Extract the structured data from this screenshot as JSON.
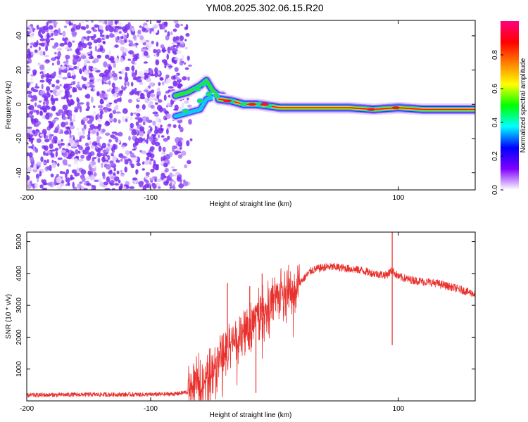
{
  "title": "YM08.2025.302.06.15.R20",
  "colors": {
    "snr_line": "#e8302c",
    "scatter_purple": "#7a2cf0",
    "scatter_light": "#d2b8fb",
    "axis": "#000000"
  },
  "chart_data": [
    {
      "type": "heatmap",
      "name": "spectrogram",
      "title": "",
      "xlabel": "Height of straight line (km)",
      "ylabel": "Frequency (Hz)",
      "xlim": [
        -200,
        162
      ],
      "ylim": [
        -50,
        49
      ],
      "xticks": [
        -200,
        -100,
        100
      ],
      "xtick_labels": [
        "-200",
        "-100",
        "100"
      ],
      "yticks": [
        -40,
        -20,
        0,
        20,
        40
      ],
      "ytick_labels": [
        "-40",
        "-20",
        "0",
        "20",
        "40"
      ],
      "noise_region_x": [
        -200,
        -75
      ],
      "band_upper": [
        [
          -80,
          5
        ],
        [
          -70,
          7
        ],
        [
          -60,
          11
        ],
        [
          -55,
          14
        ],
        [
          -50,
          8
        ],
        [
          -45,
          5
        ],
        [
          -40,
          5
        ],
        [
          -30,
          2
        ],
        [
          -20,
          0
        ],
        [
          -10,
          0
        ],
        [
          0,
          -1
        ],
        [
          10,
          -2
        ],
        [
          50,
          -2
        ],
        [
          100,
          -2
        ],
        [
          162,
          -2
        ]
      ],
      "band_lower": [
        [
          -80,
          -7
        ],
        [
          -70,
          -5
        ],
        [
          -60,
          -3
        ],
        [
          -55,
          3
        ],
        [
          -50,
          4
        ],
        [
          -45,
          3
        ],
        [
          -40,
          3
        ],
        [
          -30,
          1
        ],
        [
          -20,
          0
        ],
        [
          -10,
          -1
        ],
        [
          0,
          -2
        ],
        [
          10,
          -2
        ],
        [
          50,
          -2
        ],
        [
          100,
          -2
        ],
        [
          162,
          -2
        ]
      ],
      "main_band": [
        [
          -45,
          3
        ],
        [
          -35,
          2
        ],
        [
          -25,
          0
        ],
        [
          -15,
          0
        ],
        [
          -5,
          -1
        ],
        [
          5,
          -2
        ],
        [
          20,
          -2
        ],
        [
          40,
          -2
        ],
        [
          60,
          -2
        ],
        [
          80,
          -3
        ],
        [
          100,
          -2
        ],
        [
          120,
          -3
        ],
        [
          162,
          -3
        ]
      ],
      "colorbar": {
        "label": "Normalized spectral amplitude",
        "range": [
          0,
          1
        ],
        "ticks": [
          0.0,
          0.2,
          0.4,
          0.6,
          0.8
        ],
        "tick_labels": [
          "0.0",
          "0.2",
          "0.4",
          "0.6",
          "0.8"
        ],
        "colormap": [
          "#ffffff",
          "#8000ff",
          "#0000ff",
          "#00ffff",
          "#00ff00",
          "#ffff00",
          "#ff8000",
          "#ff0000",
          "#ff0080"
        ]
      }
    },
    {
      "type": "line",
      "name": "snr",
      "title": "",
      "xlabel": "Height of straight line (km)",
      "ylabel": "SNR (10 * v/v)",
      "xlim": [
        -200,
        162
      ],
      "ylim": [
        0,
        5300
      ],
      "xticks": [
        -200,
        -100,
        100
      ],
      "xtick_labels": [
        "-200",
        "-100",
        "100"
      ],
      "yticks": [
        1000,
        2000,
        3000,
        4000,
        5000
      ],
      "ytick_labels": [
        "1000",
        "2000",
        "3000",
        "4000",
        "5000"
      ],
      "series": [
        {
          "name": "SNR",
          "x": [
            -200,
            -150,
            -100,
            -80,
            -70,
            -60,
            -50,
            -45,
            -40,
            -35,
            -30,
            -25,
            -20,
            -15,
            -10,
            -5,
            0,
            5,
            10,
            15,
            20,
            25,
            30,
            40,
            50,
            60,
            70,
            80,
            90,
            95,
            100,
            110,
            120,
            130,
            140,
            150,
            162
          ],
          "values": [
            180,
            200,
            200,
            220,
            280,
            600,
            1000,
            1400,
            1500,
            1900,
            2000,
            2300,
            2500,
            2700,
            2800,
            3000,
            3200,
            3300,
            3400,
            3500,
            3700,
            3900,
            4100,
            4200,
            4200,
            4150,
            4100,
            4000,
            3950,
            4100,
            3900,
            3800,
            3750,
            3700,
            3600,
            3500,
            3350
          ]
        }
      ],
      "spikes": [
        {
          "x": -38,
          "value": 3700
        },
        {
          "x": -20,
          "value": 3600
        },
        {
          "x": -10,
          "value": 4000
        },
        {
          "x": -15,
          "value": 250
        },
        {
          "x": 95,
          "value": 5300
        },
        {
          "x": 95,
          "value": 1750
        }
      ]
    }
  ]
}
